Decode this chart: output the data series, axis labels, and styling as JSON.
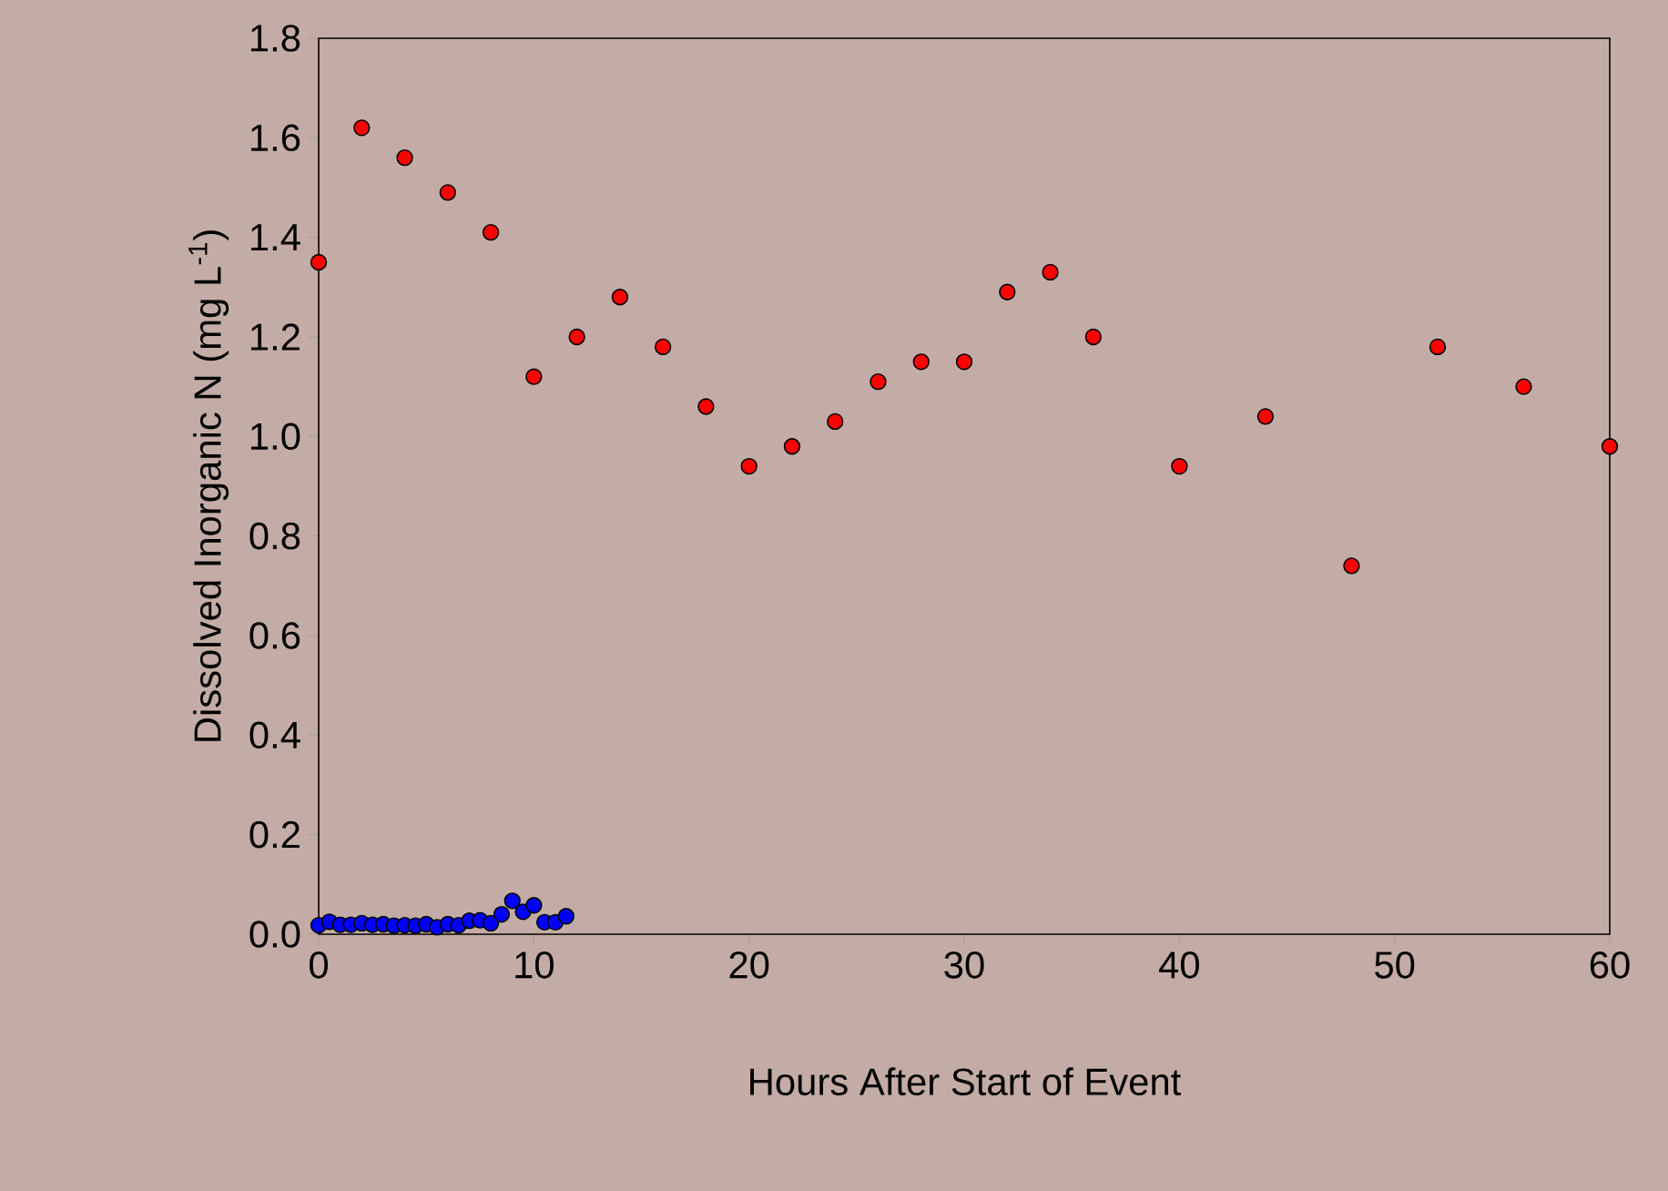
{
  "chart_data": {
    "type": "scatter",
    "xlabel": "Hours After Start of Event",
    "ylabel": "Dissolved Inorganic N (mg L$^{-1}$)",
    "xlim": [
      0,
      60
    ],
    "ylim": [
      0,
      1.8
    ],
    "xticks": [
      0,
      10,
      20,
      30,
      40,
      50,
      60
    ],
    "yticks": [
      {
        "value": 0,
        "label": "0.0"
      },
      {
        "value": 0.2,
        "label": "0.2"
      },
      {
        "value": 0.4,
        "label": "0.4"
      },
      {
        "value": 0.6,
        "label": "0.6"
      },
      {
        "value": 0.8,
        "label": "0.8"
      },
      {
        "value": 1.0,
        "label": "1.0"
      },
      {
        "value": 1.2,
        "label": "1.2"
      },
      {
        "value": 1.4,
        "label": "1.4"
      },
      {
        "value": 1.6,
        "label": "1.6"
      },
      {
        "value": 1.8,
        "label": "1.8"
      }
    ],
    "grid": false,
    "marker": "circle",
    "series": [
      {
        "color": "#ff0000",
        "x": [
          0,
          2,
          4,
          6,
          8,
          10,
          12,
          14,
          16,
          18,
          20,
          22,
          24,
          26,
          28,
          30,
          32,
          34,
          36,
          40,
          44,
          48,
          52,
          56,
          60
        ],
        "values": [
          1.35,
          1.62,
          1.56,
          1.49,
          1.41,
          1.12,
          1.2,
          1.28,
          1.18,
          1.06,
          0.94,
          0.98,
          1.03,
          1.11,
          1.15,
          1.15,
          1.29,
          1.33,
          1.2,
          0.94,
          1.04,
          0.74,
          1.18,
          1.1,
          0.98
        ]
      },
      {
        "color": "#0000ff",
        "x": [
          0,
          0.5,
          1,
          1.5,
          2,
          2.5,
          3,
          3.5,
          4,
          4.5,
          5,
          5.5,
          6,
          6.5,
          7,
          7.5,
          8,
          8.5,
          9,
          9.5,
          10,
          10.5,
          11,
          11.5
        ],
        "values": [
          0.018,
          0.025,
          0.019,
          0.019,
          0.022,
          0.019,
          0.02,
          0.017,
          0.018,
          0.017,
          0.02,
          0.014,
          0.02,
          0.018,
          0.027,
          0.028,
          0.022,
          0.04,
          0.067,
          0.045,
          0.058,
          0.024,
          0.024,
          0.036
        ]
      }
    ]
  }
}
